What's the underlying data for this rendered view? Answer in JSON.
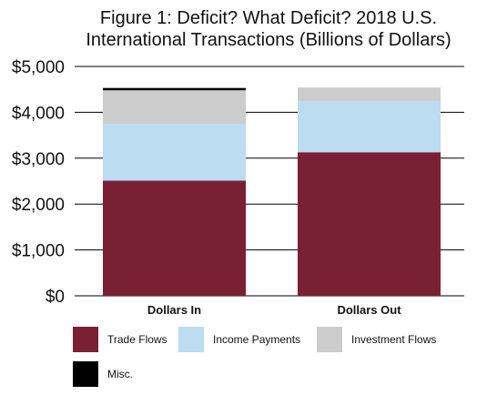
{
  "chart_data": {
    "type": "bar",
    "stacked": true,
    "title": "Figure 1: Deficit? What Deficit? 2018 U.S. International Transactions (Billions of Dollars)",
    "title_lines": [
      "Figure 1: Deficit? What Deficit? 2018 U.S.",
      "International Transactions (Billions of Dollars)"
    ],
    "categories": [
      "Dollars In",
      "Dollars Out"
    ],
    "series": [
      {
        "name": "Trade Flows",
        "color": "#7a2035",
        "values": [
          2510,
          3130
        ]
      },
      {
        "name": "Income Payments",
        "color": "#bcdcf2",
        "values": [
          1240,
          1110
        ]
      },
      {
        "name": "Investment Flows",
        "color": "#cccccc",
        "values": [
          730,
          300
        ]
      },
      {
        "name": "Misc.",
        "color": "#000000",
        "values": [
          50,
          0
        ]
      }
    ],
    "y_ticks": [
      {
        "value": 0,
        "label": "$0"
      },
      {
        "value": 1000,
        "label": "$1,000"
      },
      {
        "value": 2000,
        "label": "$2,000"
      },
      {
        "value": 3000,
        "label": "$3,000"
      },
      {
        "value": 4000,
        "label": "$4,000"
      },
      {
        "value": 5000,
        "label": "$5,000"
      }
    ],
    "ylim": [
      0,
      5000
    ],
    "grid": true,
    "legend_position": "bottom",
    "xlabel": "",
    "ylabel": ""
  }
}
